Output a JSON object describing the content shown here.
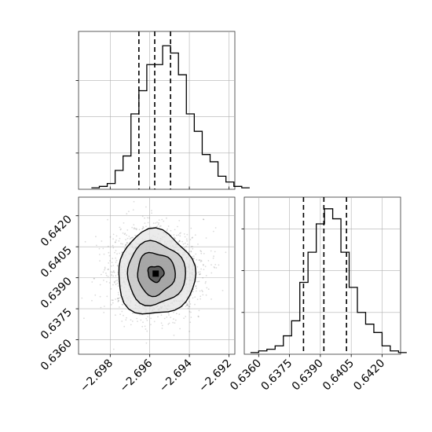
{
  "chart_data": {
    "type": "corner",
    "title": "",
    "histogram_x": {
      "type": "histogram",
      "xlim": [
        -2.6996,
        -2.6917
      ],
      "bin_start": -2.69895,
      "bin_width": 0.0004,
      "counts": [
        1,
        2,
        4,
        13,
        23,
        52,
        68,
        86,
        86,
        99,
        94,
        79,
        52,
        40,
        24,
        19,
        9,
        5,
        2,
        1
      ],
      "quantiles": [
        -2.69655,
        -2.69575,
        -2.69495
      ],
      "grid": true
    },
    "histogram_y": {
      "type": "histogram",
      "xlim": [
        0.6353,
        0.6429
      ],
      "bin_start": 0.6356,
      "bin_width": 0.0004,
      "counts": [
        1,
        2,
        3,
        5,
        11,
        20,
        43,
        61,
        78,
        87,
        81,
        61,
        40,
        25,
        18,
        13,
        5,
        2,
        1
      ],
      "quantiles": [
        0.63818,
        0.63917,
        0.64027
      ],
      "grid": true
    },
    "density": {
      "type": "scatter",
      "x_center": -2.6957,
      "y_center": 0.6392,
      "xlim": [
        -2.6996,
        -2.6917
      ],
      "ylim": [
        0.6353,
        0.6429
      ],
      "contour_levels": 4,
      "grid": true
    },
    "x_axis": {
      "ticks": [
        -2.698,
        -2.696,
        -2.694,
        -2.692
      ],
      "tick_labels": [
        "−2.698",
        "−2.696",
        "−2.694",
        "−2.692"
      ]
    },
    "y_axis": {
      "ticks": [
        0.636,
        0.6375,
        0.639,
        0.6405,
        0.642
      ],
      "tick_labels": [
        "0.6360",
        "0.6375",
        "0.6390",
        "0.6405",
        "0.6420"
      ]
    }
  }
}
